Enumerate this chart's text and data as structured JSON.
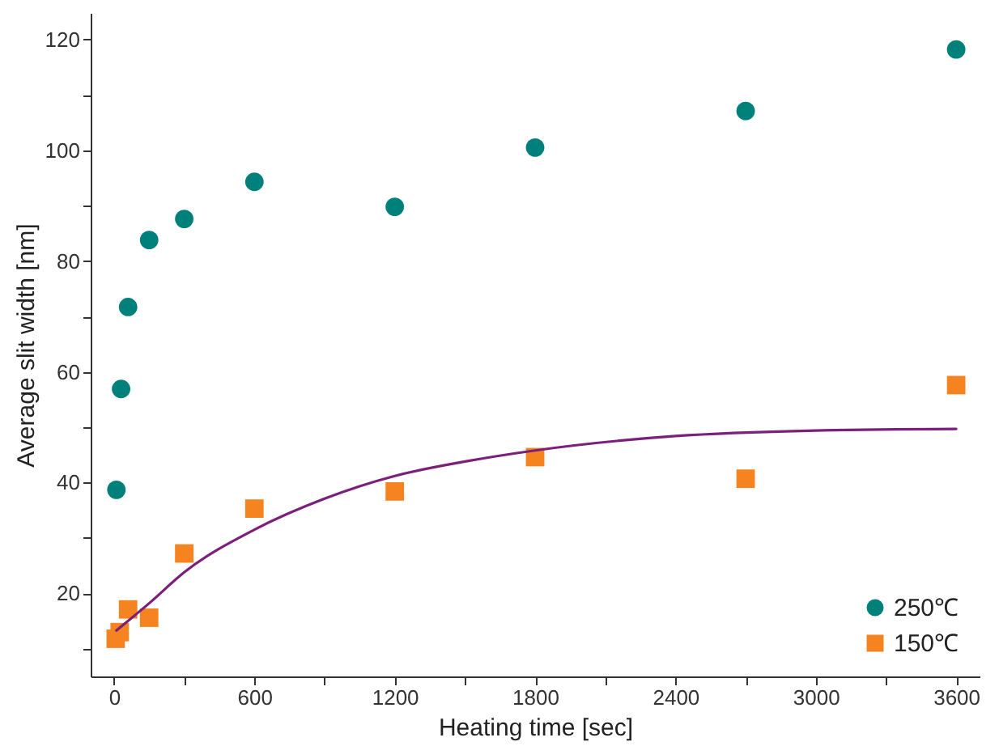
{
  "chart_data": {
    "type": "scatter",
    "xlabel": "Heating time [sec]",
    "ylabel": "Average slit width [nm]",
    "xlim": [
      -100,
      3700
    ],
    "ylim": [
      5,
      124.8
    ],
    "xticks": [
      0,
      {
        "value": 300,
        "label": null
      },
      600,
      {
        "value": 900,
        "label": null
      },
      1200,
      {
        "value": 1500,
        "label": null
      },
      1800,
      {
        "value": 2100,
        "label": null
      },
      2400,
      {
        "value": 2700,
        "label": null
      },
      3000,
      {
        "value": 3300,
        "label": null
      },
      3600
    ],
    "yticks": [
      {
        "value": 10,
        "label": null
      },
      20,
      {
        "value": 30,
        "label": null
      },
      40,
      {
        "value": 50,
        "label": null
      },
      60,
      {
        "value": 70,
        "label": null
      },
      80,
      {
        "value": 90,
        "label": null
      },
      100,
      {
        "value": 110,
        "label": null
      },
      120
    ],
    "grid": false,
    "legend": "bottom right",
    "series": [
      {
        "name": "250℃",
        "type": "scatter",
        "marker": "circle",
        "color": "#00807a",
        "x": [
          10,
          30,
          60,
          150,
          300,
          600,
          1200,
          1800,
          2700,
          3600
        ],
        "values": [
          38.7,
          56.9,
          71.7,
          83.8,
          87.6,
          94.3,
          89.8,
          100.5,
          107.1,
          118.2
        ]
      },
      {
        "name": "150℃",
        "type": "scatter",
        "marker": "square",
        "color": "#f5831f",
        "x": [
          7,
          24,
          60,
          150,
          300,
          600,
          1200,
          1800,
          2700,
          3600
        ],
        "values": [
          11.8,
          13,
          17.1,
          15.6,
          27.2,
          35.3,
          38.4,
          44.6,
          40.7,
          57.6
        ]
      },
      {
        "type": "line",
        "marker": "none",
        "color": "#7b1f7b",
        "x": [
          10,
          150,
          300,
          600,
          900,
          1200,
          1500,
          1800,
          2400,
          3000,
          3600
        ],
        "values": [
          13.3,
          18.2,
          23.8,
          31.5,
          37.1,
          41.2,
          43.8,
          45.8,
          48.4,
          49.4,
          49.7
        ]
      }
    ]
  }
}
